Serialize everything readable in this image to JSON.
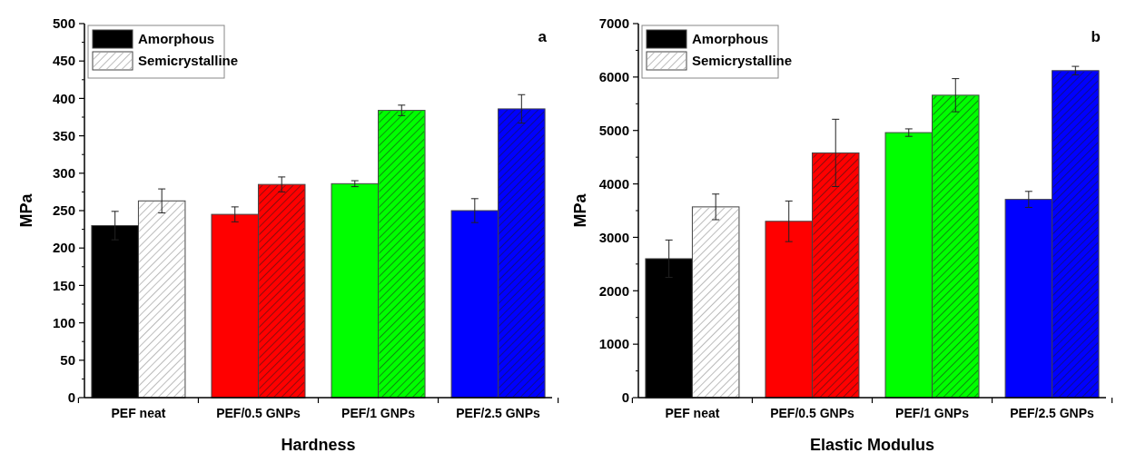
{
  "chart_data": [
    {
      "type": "bar",
      "xlabel": "Hardness",
      "ylabel": "MPa",
      "annotations": [
        "a"
      ],
      "categories": [
        "PEF neat",
        "PEF/0.5 GNPs",
        "PEF/1 GNPs",
        "PEF/2.5 GNPs"
      ],
      "ylim": [
        0,
        500
      ],
      "yticks": [
        0,
        50,
        100,
        150,
        200,
        250,
        300,
        350,
        400,
        450,
        500
      ],
      "grid": false,
      "legend": "top left",
      "series": [
        {
          "name": "Amorphous",
          "color": "#000000",
          "colors": [
            "#000000",
            "#ff0000",
            "#00ff00",
            "#0000ff"
          ],
          "values": [
            230,
            245,
            286,
            250
          ],
          "errors": [
            19,
            10,
            4,
            16
          ]
        },
        {
          "name": "Semicrystalline",
          "color": "#ffffff",
          "colors": [
            "#ffffff",
            "#ff0000",
            "#00ff00",
            "#0000ff"
          ],
          "values": [
            263,
            285,
            384,
            386
          ],
          "errors": [
            16,
            10,
            7,
            19
          ]
        }
      ]
    },
    {
      "type": "bar",
      "xlabel": "Elastic Modulus",
      "ylabel": "MPa",
      "annotations": [
        "b"
      ],
      "categories": [
        "PEF neat",
        "PEF/0.5 GNPs",
        "PEF/1 GNPs",
        "PEF/2.5 GNPs"
      ],
      "ylim": [
        0,
        7000
      ],
      "yticks": [
        0,
        1000,
        2000,
        3000,
        4000,
        5000,
        6000,
        7000
      ],
      "grid": false,
      "legend": "top left",
      "series": [
        {
          "name": "Amorphous",
          "color": "#000000",
          "colors": [
            "#000000",
            "#ff0000",
            "#00ff00",
            "#0000ff"
          ],
          "values": [
            2600,
            3300,
            4960,
            3710
          ],
          "errors": [
            350,
            380,
            70,
            150
          ]
        },
        {
          "name": "Semicrystalline",
          "color": "#ffffff",
          "colors": [
            "#ffffff",
            "#ff0000",
            "#00ff00",
            "#0000ff"
          ],
          "values": [
            3570,
            4580,
            5660,
            6120
          ],
          "errors": [
            240,
            630,
            310,
            80
          ]
        }
      ]
    }
  ]
}
